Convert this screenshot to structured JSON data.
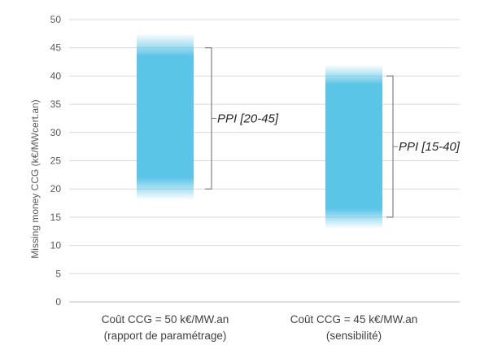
{
  "chart_data": {
    "type": "range-bar",
    "ylabel": "Missing money CCG (k€/MWcert.an)",
    "ylim": [
      0,
      50
    ],
    "yticks": [
      0,
      5,
      10,
      15,
      20,
      25,
      30,
      35,
      40,
      45,
      50
    ],
    "grid": true,
    "categories": [
      [
        "Coût CCG = 50 k€/MW.an",
        "(rapport de paramétrage)"
      ],
      [
        "Coût CCG = 45 k€/MW.an",
        "(sensibilité)"
      ]
    ],
    "bars": [
      {
        "low": 18,
        "high": 47.5,
        "core_low": 22,
        "core_high": 43.5
      },
      {
        "low": 13,
        "high": 42,
        "core_low": 16.5,
        "core_high": 38.5
      }
    ],
    "ranges": [
      {
        "label": "PPI [20-45]",
        "low": 20,
        "high": 45
      },
      {
        "label": "PPI [15-40]",
        "low": 15,
        "high": 40
      }
    ],
    "colors": {
      "bar": "#5bc5e8",
      "grid": "#d9d9d9",
      "bracket": "#7f7f7f"
    }
  }
}
